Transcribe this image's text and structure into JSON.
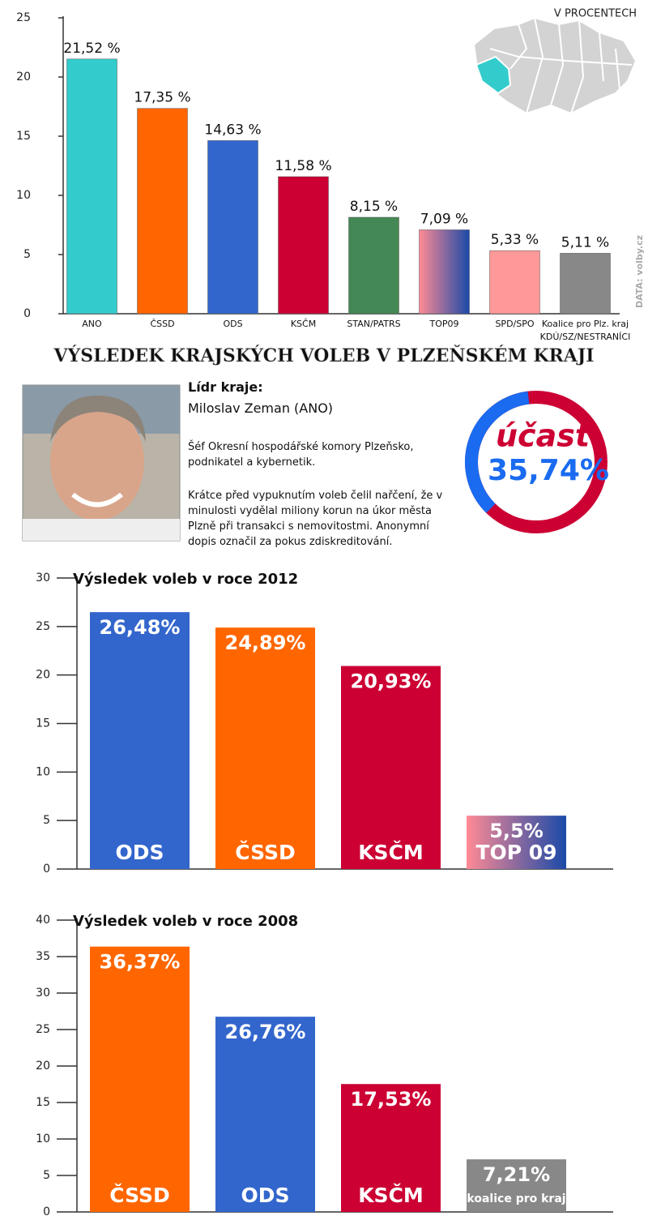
{
  "chart_data": [
    {
      "type": "bar",
      "title": "VÝSLEDEK KRAJSKÝCH VOLEB V PLZEŇSKÉM KRAJI",
      "subtitle": "V PROCENTECH",
      "source": "DATA: volby.cz",
      "categories": [
        "ANO",
        "ČSSD",
        "ODS",
        "KSČM",
        "STAN/PATRS",
        "TOP09",
        "SPD/SPO",
        "Koalice pro Plz. kraj\nKDÚ/SZ/NESTRANÍCI"
      ],
      "values": [
        21.52,
        17.35,
        14.63,
        11.58,
        8.15,
        7.09,
        5.33,
        5.11
      ],
      "value_labels": [
        "21,52 %",
        "17,35 %",
        "14,63 %",
        "11,58 %",
        "8,15 %",
        "7,09 %",
        "5,33 %",
        "5,11 %"
      ],
      "colors": [
        "#33cccc",
        "#ff6600",
        "#3366cc",
        "#cc0033",
        "#448855",
        [
          "#ff8a95",
          "#1a4aa8"
        ],
        "#ff9999",
        "#888888"
      ],
      "ylim": [
        0,
        25
      ],
      "yticks": [
        0,
        5,
        10,
        15,
        20,
        25
      ]
    },
    {
      "type": "donut",
      "title": "účast",
      "values": [
        35.74
      ],
      "value_labels": [
        "35,74%"
      ],
      "colors": [
        "#1a6bf0",
        "#cc0033"
      ]
    },
    {
      "type": "bar",
      "title": "Výsledek voleb v roce 2012",
      "categories": [
        "ODS",
        "ČSSD",
        "KSČM",
        "TOP 09"
      ],
      "values": [
        26.48,
        24.89,
        20.93,
        5.5
      ],
      "value_labels": [
        "26,48%",
        "24,89%",
        "20,93%",
        "5,5%"
      ],
      "colors": [
        "#3366cc",
        "#ff6600",
        "#cc0033",
        [
          "#ff8a95",
          "#1a4aa8"
        ]
      ],
      "ylim": [
        0,
        30
      ],
      "yticks": [
        0,
        5,
        10,
        15,
        20,
        25,
        30
      ]
    },
    {
      "type": "bar",
      "title": "Výsledek voleb v roce 2008",
      "categories": [
        "ČSSD",
        "ODS",
        "KSČM",
        "koalice pro kraj"
      ],
      "values": [
        36.37,
        26.76,
        17.53,
        7.21
      ],
      "value_labels": [
        "36,37%",
        "26,76%",
        "17,53%",
        "7,21%"
      ],
      "colors": [
        "#ff6600",
        "#3366cc",
        "#cc0033",
        "#888888"
      ],
      "ylim": [
        0,
        40
      ],
      "yticks": [
        0,
        5,
        10,
        15,
        20,
        25,
        30,
        35,
        40
      ]
    }
  ],
  "leader": {
    "heading": "Lídr kraje:",
    "name": "Miloslav Zeman (ANO)",
    "paragraphs": [
      "Šéf Okresní hospodářské komory Plzeňsko, podnikatel a kybernetik.",
      "Krátce před vypuknutím voleb čelil nařčení, že v minulosti vydělal miliony korun na úkor města Plzně při transakci s nemovitostmi. Anonymní dopis označil za pokus zdiskreditování."
    ]
  }
}
